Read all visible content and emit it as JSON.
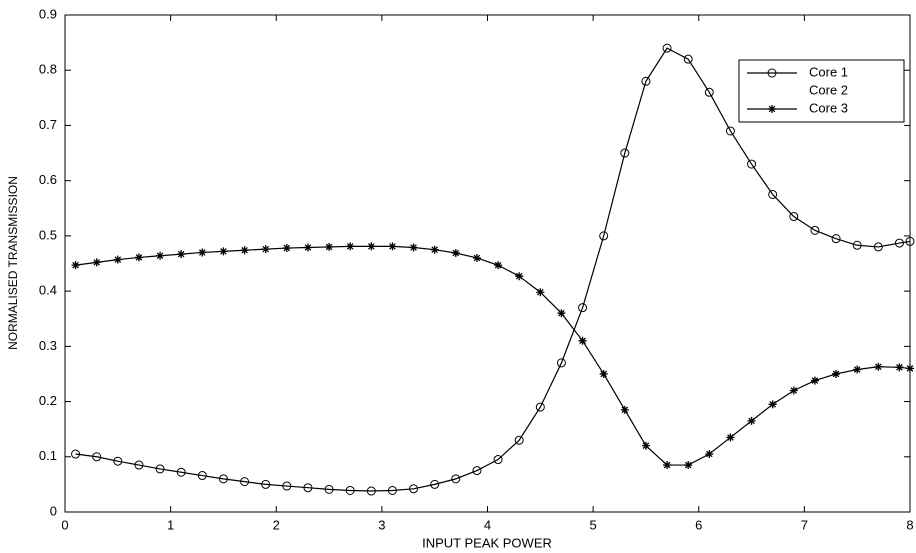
{
  "chart_data": {
    "type": "line",
    "xlabel": "INPUT PEAK POWER",
    "ylabel": "NORMALISED TRANSMISSION",
    "x": [
      0.1,
      0.3,
      0.5,
      0.7,
      0.9,
      1.1,
      1.3,
      1.5,
      1.7,
      1.9,
      2.1,
      2.3,
      2.5,
      2.7,
      2.9,
      3.1,
      3.3,
      3.5,
      3.7,
      3.9,
      4.1,
      4.3,
      4.5,
      4.7,
      4.9,
      5.1,
      5.3,
      5.5,
      5.7,
      5.9,
      6.1,
      6.3,
      6.5,
      6.7,
      6.9,
      7.1,
      7.3,
      7.5,
      7.7,
      7.9,
      8.0
    ],
    "series": [
      {
        "name": "Core 1",
        "color": "#000000",
        "marker": "circle",
        "values": [
          0.105,
          0.1,
          0.092,
          0.085,
          0.078,
          0.072,
          0.066,
          0.06,
          0.055,
          0.05,
          0.047,
          0.044,
          0.041,
          0.039,
          0.038,
          0.039,
          0.042,
          0.05,
          0.06,
          0.075,
          0.095,
          0.13,
          0.19,
          0.27,
          0.37,
          0.5,
          0.65,
          0.78,
          0.84,
          0.82,
          0.76,
          0.69,
          0.63,
          0.575,
          0.535,
          0.51,
          0.495,
          0.483,
          0.48,
          0.487,
          0.49
        ]
      },
      {
        "name": "Core 2",
        "color": "#ffffff",
        "marker": "none",
        "values": [
          null,
          null,
          null,
          null,
          null,
          null,
          null,
          null,
          null,
          null,
          null,
          null,
          null,
          null,
          null,
          null,
          null,
          null,
          null,
          null,
          null,
          null,
          null,
          null,
          null,
          null,
          null,
          null,
          null,
          null,
          null,
          null,
          null,
          null,
          null,
          null,
          null,
          null,
          null,
          null,
          null
        ]
      },
      {
        "name": "Core 3",
        "color": "#000000",
        "marker": "star",
        "values": [
          0.447,
          0.452,
          0.457,
          0.461,
          0.464,
          0.467,
          0.47,
          0.472,
          0.474,
          0.476,
          0.478,
          0.479,
          0.48,
          0.481,
          0.481,
          0.481,
          0.479,
          0.475,
          0.469,
          0.46,
          0.447,
          0.427,
          0.398,
          0.36,
          0.31,
          0.25,
          0.185,
          0.12,
          0.085,
          0.085,
          0.105,
          0.135,
          0.165,
          0.195,
          0.22,
          0.238,
          0.25,
          0.258,
          0.263,
          0.262,
          0.26
        ]
      }
    ],
    "xlim": [
      0,
      8
    ],
    "xticks": [
      0,
      1,
      2,
      3,
      4,
      5,
      6,
      7,
      8
    ],
    "ylim": [
      0,
      0.9
    ],
    "yticks": [
      0,
      0.1,
      0.2,
      0.3,
      0.4,
      0.5,
      0.6,
      0.7,
      0.8,
      0.9
    ],
    "grid": false,
    "legend": "upper right"
  }
}
